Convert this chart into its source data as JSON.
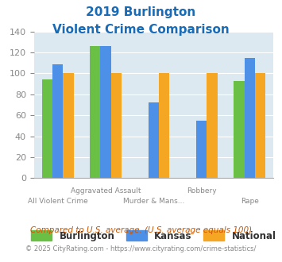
{
  "title_line1": "2019 Burlington",
  "title_line2": "Violent Crime Comparison",
  "categories": [
    "All Violent Crime",
    "Aggravated Assault",
    "Murder & Mans...",
    "Robbery",
    "Rape"
  ],
  "series": {
    "Burlington": [
      94,
      126,
      null,
      null,
      93
    ],
    "Kansas": [
      109,
      126,
      72,
      55,
      115
    ],
    "National": [
      100,
      100,
      100,
      100,
      100
    ]
  },
  "colors": {
    "Burlington": "#6abf45",
    "Kansas": "#4d90e8",
    "National": "#f5a623"
  },
  "ylim": [
    0,
    140
  ],
  "yticks": [
    0,
    20,
    40,
    60,
    80,
    100,
    120,
    140
  ],
  "plot_bg": "#dce9f0",
  "title_color": "#1a6bb5",
  "tick_color": "#888888",
  "footnote1": "Compared to U.S. average. (U.S. average equals 100)",
  "footnote2": "© 2025 CityRating.com - https://www.cityrating.com/crime-statistics/",
  "footnote1_color": "#cc5500",
  "footnote2_color": "#888888",
  "bar_width": 0.22,
  "label_row1": [
    "",
    "Aggravated Assault",
    "",
    "Robbery",
    ""
  ],
  "label_row2": [
    "All Violent Crime",
    "",
    "Murder & Mans...",
    "",
    "Rape"
  ]
}
